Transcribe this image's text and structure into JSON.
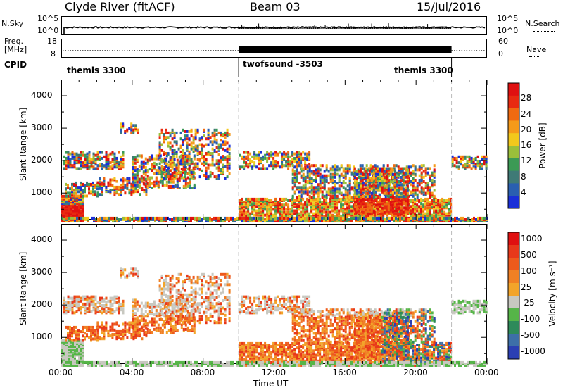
{
  "header": {
    "station": "Clyde River (fitACF)",
    "beam": "Beam 03",
    "date": "15/Jul/2016"
  },
  "nsky_panel": {
    "left_label": "N.Sky",
    "right_label": "N.Search",
    "left_ticks": [
      "10^5",
      "10^0"
    ],
    "right_ticks": [
      "10^5",
      "10^0"
    ]
  },
  "freq_panel": {
    "left_label_1": "Freq.",
    "left_label_2": "[MHz]",
    "right_label": "Nave",
    "left_ticks": [
      "18",
      "8"
    ],
    "right_ticks": [
      "60",
      "0"
    ]
  },
  "cpid_panel": {
    "label": "CPID",
    "segments": [
      {
        "name": "themis 3300",
        "start_hour": 0,
        "end_hour": 10
      },
      {
        "name": "twofsound -3503",
        "start_hour": 10,
        "end_hour": 22
      },
      {
        "name": "themis 3300",
        "start_hour": 22,
        "end_hour": 24
      }
    ]
  },
  "chart_data": [
    {
      "type": "heatmap",
      "name": "power",
      "ylabel": "Slant Range [km]",
      "xlabel": "",
      "xlim": [
        0,
        24
      ],
      "ylim": [
        180,
        4500
      ],
      "yticks": [
        1000,
        2000,
        3000,
        4000
      ],
      "colorbar": {
        "label": "Power [dB]",
        "ticks": [
          4,
          8,
          12,
          16,
          20,
          24,
          28
        ],
        "colors": [
          "#1a2fd8",
          "#2a5fb0",
          "#3f7a76",
          "#3c9a55",
          "#9bbf3a",
          "#f2c81c",
          "#f59a1a",
          "#f06a10",
          "#e82a10",
          "#e01010"
        ]
      }
    },
    {
      "type": "heatmap",
      "name": "velocity",
      "ylabel": "Slant Range [km]",
      "xlabel": "Time UT",
      "xlim": [
        0,
        24
      ],
      "ylim": [
        180,
        4500
      ],
      "yticks": [
        1000,
        2000,
        3000,
        4000
      ],
      "xticks": [
        "00:00",
        "04:00",
        "08:00",
        "12:00",
        "16:00",
        "20:00",
        "00:00"
      ],
      "colorbar": {
        "label": "Velocity [m s⁻¹]",
        "ticks": [
          "1000",
          "500",
          "100",
          "25",
          "-25",
          "-100",
          "-500",
          "-1000"
        ],
        "colors": [
          "#2b3fb3",
          "#3d6fa8",
          "#2e8a5a",
          "#56b548",
          "#c8c8c0",
          "#f2a42a",
          "#f08024",
          "#ee5a1c",
          "#e8381a",
          "#e01010"
        ]
      }
    }
  ]
}
